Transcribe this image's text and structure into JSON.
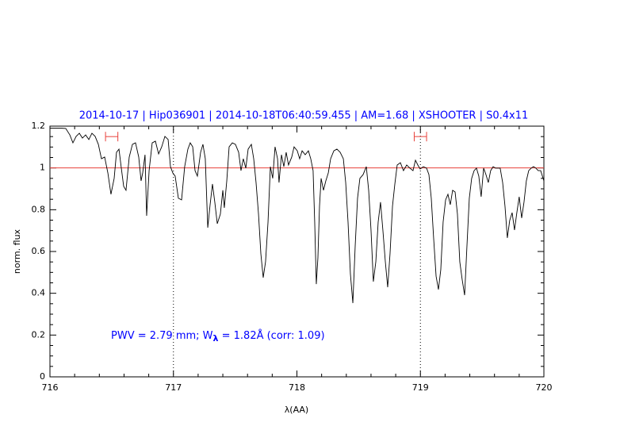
{
  "chart_data": {
    "type": "line",
    "title": "2014-10-17 | Hip036901 | 2014-10-18T06:40:59.455 | AM=1.68 | XSHOOTER | S0.4x11",
    "x_label": "λ(AA)",
    "y_label": "norm. flux",
    "annotation": [
      "PWV = 2.79 mm; W",
      "λ",
      " = 1.82Å (corr: 1.09)"
    ],
    "color": "#000000",
    "x": [
      716.0,
      716.045,
      716.096,
      716.128,
      716.161,
      716.186,
      716.212,
      716.238,
      716.263,
      716.289,
      716.315,
      716.34,
      716.366,
      716.392,
      716.417,
      716.443,
      716.469,
      716.494,
      716.52,
      716.539,
      716.559,
      716.578,
      716.597,
      716.616,
      716.642,
      716.668,
      716.693,
      716.719,
      716.738,
      716.751,
      716.77,
      716.783,
      716.803,
      716.828,
      716.854,
      716.88,
      716.905,
      716.931,
      716.957,
      716.976,
      716.995,
      717.014,
      717.04,
      717.066,
      717.091,
      717.117,
      717.136,
      717.156,
      717.175,
      717.194,
      717.22,
      717.239,
      717.258,
      717.278,
      717.297,
      717.316,
      717.335,
      717.355,
      717.38,
      717.4,
      717.412,
      717.432,
      717.451,
      717.477,
      717.502,
      717.528,
      717.547,
      717.566,
      717.586,
      717.605,
      717.631,
      717.65,
      717.669,
      717.689,
      717.708,
      717.727,
      717.746,
      717.766,
      717.785,
      717.804,
      717.823,
      717.843,
      717.855,
      717.875,
      717.894,
      717.913,
      717.932,
      717.958,
      717.977,
      718.003,
      718.022,
      718.042,
      718.067,
      718.093,
      718.112,
      718.131,
      718.144,
      718.157,
      718.17,
      718.183,
      718.196,
      718.215,
      718.234,
      718.254,
      718.273,
      718.299,
      718.324,
      718.35,
      718.376,
      718.395,
      718.414,
      718.433,
      718.453,
      718.472,
      718.491,
      718.51,
      718.536,
      718.562,
      718.581,
      718.6,
      718.619,
      718.639,
      718.658,
      718.677,
      718.696,
      718.716,
      718.735,
      718.754,
      718.774,
      718.793,
      718.812,
      718.838,
      718.863,
      718.889,
      718.915,
      718.94,
      718.96,
      718.979,
      718.998,
      719.024,
      719.05,
      719.069,
      719.088,
      719.107,
      719.127,
      719.146,
      719.165,
      719.184,
      719.204,
      719.223,
      719.242,
      719.261,
      719.281,
      719.3,
      719.319,
      719.338,
      719.358,
      719.377,
      719.396,
      719.415,
      719.435,
      719.454,
      719.473,
      719.492,
      719.512,
      719.531,
      719.55,
      719.569,
      719.589,
      719.608,
      719.627,
      719.646,
      719.666,
      719.685,
      719.704,
      719.723,
      719.743,
      719.762,
      719.781,
      719.8,
      719.82,
      719.839,
      719.858,
      719.877,
      719.897,
      719.916,
      719.935,
      719.954,
      719.974,
      720.0
    ],
    "values": [
      1.19,
      1.19,
      1.19,
      1.189,
      1.158,
      1.12,
      1.151,
      1.166,
      1.143,
      1.158,
      1.136,
      1.166,
      1.151,
      1.113,
      1.044,
      1.052,
      0.976,
      0.874,
      0.95,
      1.075,
      1.09,
      0.999,
      0.912,
      0.893,
      1.052,
      1.113,
      1.12,
      1.052,
      0.938,
      0.976,
      1.063,
      0.771,
      0.987,
      1.12,
      1.128,
      1.067,
      1.101,
      1.151,
      1.136,
      1.006,
      0.976,
      0.961,
      0.855,
      0.847,
      1.006,
      1.09,
      1.12,
      1.101,
      0.987,
      0.961,
      1.075,
      1.113,
      1.044,
      0.714,
      0.824,
      0.923,
      0.836,
      0.733,
      0.779,
      0.893,
      0.809,
      0.938,
      1.101,
      1.12,
      1.113,
      1.075,
      0.987,
      1.044,
      0.999,
      1.09,
      1.113,
      1.044,
      0.93,
      0.779,
      0.589,
      0.475,
      0.551,
      0.741,
      1.006,
      0.95,
      1.101,
      1.044,
      0.93,
      1.063,
      1.006,
      1.075,
      1.014,
      1.052,
      1.101,
      1.082,
      1.044,
      1.082,
      1.063,
      1.082,
      1.044,
      0.987,
      0.741,
      0.444,
      0.57,
      0.817,
      0.95,
      0.893,
      0.938,
      0.976,
      1.044,
      1.082,
      1.09,
      1.075,
      1.044,
      0.93,
      0.741,
      0.494,
      0.353,
      0.627,
      0.855,
      0.95,
      0.968,
      1.006,
      0.893,
      0.703,
      0.456,
      0.551,
      0.741,
      0.836,
      0.703,
      0.551,
      0.429,
      0.589,
      0.817,
      0.923,
      1.014,
      1.025,
      0.987,
      1.014,
      0.999,
      0.987,
      1.037,
      1.014,
      0.995,
      1.006,
      0.999,
      0.968,
      0.855,
      0.665,
      0.482,
      0.418,
      0.513,
      0.741,
      0.847,
      0.874,
      0.824,
      0.893,
      0.885,
      0.779,
      0.551,
      0.467,
      0.391,
      0.627,
      0.855,
      0.95,
      0.987,
      0.999,
      0.961,
      0.862,
      0.999,
      0.968,
      0.93,
      0.987,
      1.006,
      0.999,
      0.999,
      0.999,
      0.93,
      0.817,
      0.665,
      0.748,
      0.786,
      0.703,
      0.786,
      0.862,
      0.76,
      0.836,
      0.938,
      0.987,
      0.999,
      1.006,
      0.999,
      0.987,
      0.987,
      0.938
    ],
    "xlim": [
      716,
      720
    ],
    "ylim": [
      0,
      1.2
    ],
    "xticks": [
      716,
      717,
      718,
      719,
      720
    ],
    "yticks": [
      0,
      0.2,
      0.4,
      0.6,
      0.8,
      1,
      1.2
    ],
    "reference_line": {
      "y": 1,
      "color": "#e8403a"
    },
    "vlines": [
      717,
      719
    ],
    "ranges": [
      {
        "x": [
          716.45,
          716.55
        ],
        "y": 1.15,
        "color": "#e8403a"
      },
      {
        "x": [
          718.95,
          719.05
        ],
        "y": 1.15,
        "color": "#e8403a"
      }
    ],
    "text_color": "#0000ff"
  }
}
